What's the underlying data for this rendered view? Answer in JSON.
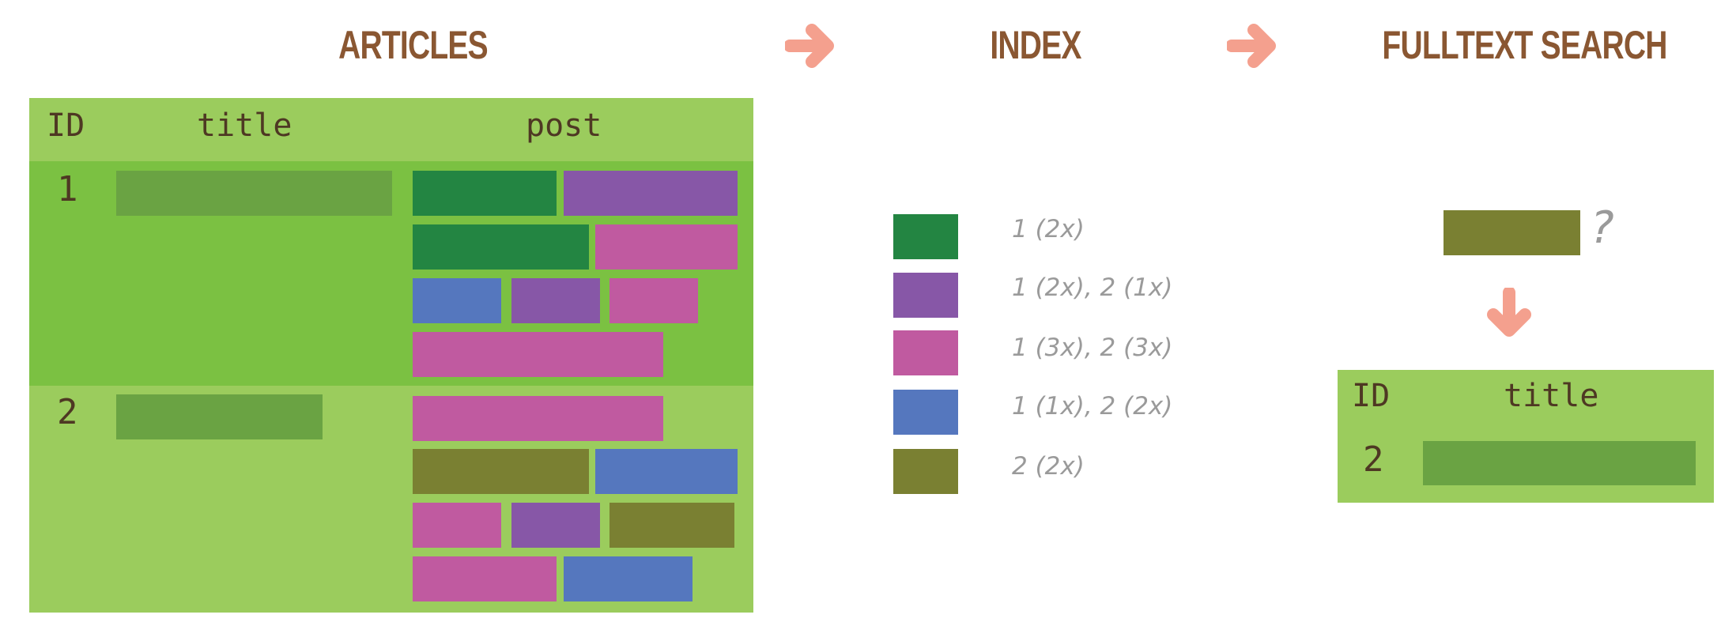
{
  "headings": {
    "articles": "ARTICLES",
    "index": "INDEX",
    "search": "FULLTEXT SEARCH"
  },
  "colors": {
    "heading": "#8a5732",
    "arrow": "#f4a08e",
    "table_header": "#9bcc5d",
    "row1": "#7bc142",
    "row2": "#9bcc5d",
    "title_bar": "#6aa343",
    "dark_green": "#238542",
    "purple": "#8757a7",
    "pink": "#c05aa0",
    "blue": "#5577be",
    "olive": "#7a8032"
  },
  "articles": {
    "columns": [
      "ID",
      "title",
      "post"
    ],
    "rows": [
      {
        "id": "1",
        "post_words": [
          "dark_green",
          "purple",
          "dark_green",
          "pink",
          "blue",
          "purple",
          "pink",
          "pink"
        ]
      },
      {
        "id": "2",
        "post_words": [
          "pink",
          "olive",
          "blue",
          "pink",
          "purple",
          "olive",
          "pink",
          "blue"
        ]
      }
    ]
  },
  "index": {
    "entries": [
      {
        "color": "dark_green",
        "text": "1  (2x)"
      },
      {
        "color": "purple",
        "text": "1  (2x), 2  (1x)"
      },
      {
        "color": "pink",
        "text": "1  (3x), 2  (3x)"
      },
      {
        "color": "blue",
        "text": "1  (1x), 2  (2x)"
      },
      {
        "color": "olive",
        "text": "2  (2x)"
      }
    ]
  },
  "search": {
    "query_color": "olive",
    "question_mark": "?",
    "result": {
      "columns": [
        "ID",
        "title"
      ],
      "rows": [
        {
          "id": "2"
        }
      ]
    }
  }
}
